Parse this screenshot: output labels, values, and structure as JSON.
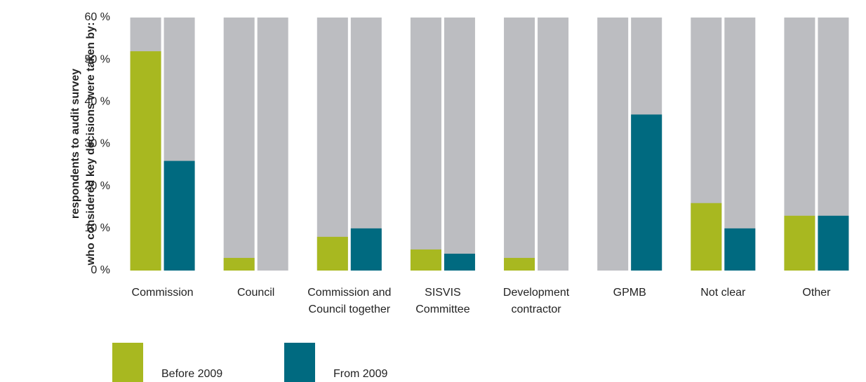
{
  "chart_data": {
    "type": "bar",
    "ylabel": [
      "respondents to audit survey",
      "who considered key decisions were taken by:"
    ],
    "categories": [
      [
        "Commission"
      ],
      [
        "Council"
      ],
      [
        "Commission and",
        "Council together"
      ],
      [
        "SISVIS",
        "Committee"
      ],
      [
        "Development",
        "contractor"
      ],
      [
        "GPMB"
      ],
      [
        "Not clear"
      ],
      [
        "Other"
      ]
    ],
    "series": [
      {
        "name": "Before 2009",
        "color": "#a8b820",
        "values": [
          52,
          3,
          8,
          5,
          3,
          0,
          16,
          13
        ]
      },
      {
        "name": "From 2009",
        "color": "#006a80",
        "values": [
          26,
          0,
          10,
          4,
          0,
          37,
          10,
          13
        ]
      }
    ],
    "ylim": [
      0,
      60
    ],
    "yticks": [
      {
        "value": 0,
        "label": "0 %"
      },
      {
        "value": 10,
        "label": "10 %"
      },
      {
        "value": 20,
        "label": "20 %"
      },
      {
        "value": 30,
        "label": "30 %"
      },
      {
        "value": 40,
        "label": "40 %"
      },
      {
        "value": 50,
        "label": "50 %"
      },
      {
        "value": 60,
        "label": "60 %"
      }
    ],
    "background_color": "#bcbdc1"
  }
}
